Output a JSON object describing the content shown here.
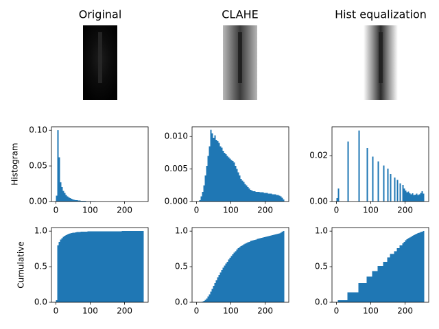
{
  "chart_data": [
    {
      "type": "image",
      "title": "Original"
    },
    {
      "type": "image",
      "title": "CLAHE"
    },
    {
      "type": "image",
      "title": "Hist equalization"
    },
    {
      "type": "histogram",
      "ylabel": "Histogram",
      "color": "#1f77b4",
      "bins": [
        0,
        4,
        8,
        12,
        16,
        20,
        24,
        28,
        32,
        36,
        40,
        44,
        48,
        52,
        56,
        60,
        64,
        68,
        72,
        76,
        80,
        84,
        88,
        92,
        96,
        100,
        104,
        108,
        112,
        116,
        120,
        124,
        128,
        132,
        136,
        140,
        144,
        148,
        152,
        156,
        160,
        164,
        168,
        172,
        176,
        180,
        184,
        188,
        192,
        196,
        200,
        204,
        208,
        212,
        216,
        220,
        224,
        228,
        232,
        236,
        240,
        244,
        248,
        252,
        256
      ],
      "values": [
        0.008,
        0.1,
        0.062,
        0.027,
        0.02,
        0.015,
        0.012,
        0.009,
        0.007,
        0.006,
        0.005,
        0.004,
        0.003,
        0.0025,
        0.002,
        0.0018,
        0.0015,
        0.0013,
        0.0012,
        0.001,
        0.0009,
        0.0008,
        0.0007,
        0.0006,
        0.0005,
        0.0004,
        0.0004,
        0.0003,
        0.0003,
        0.0002,
        0.0002,
        0.0002,
        0.0001,
        0.0001,
        0.0001,
        0.0001,
        0.0001,
        0.0001,
        0.0001,
        0.0001,
        0.0001,
        0.0001,
        0,
        0,
        0,
        0,
        0,
        0,
        0,
        0,
        0,
        0,
        0,
        0,
        0,
        0,
        0,
        0,
        0,
        0,
        0,
        0,
        0,
        0
      ],
      "xlim": [
        -12.8,
        268.8
      ],
      "xticks": [
        0,
        100,
        200
      ],
      "ylim": [
        0,
        0.105
      ],
      "yticks": [
        {
          "value": 0,
          "label": "0.00"
        },
        {
          "value": 0.05,
          "label": "0.05"
        },
        {
          "value": 0.1,
          "label": "0.10"
        }
      ]
    },
    {
      "type": "histogram",
      "color": "#1f77b4",
      "bins": [
        0,
        4,
        8,
        12,
        16,
        20,
        24,
        28,
        32,
        36,
        40,
        44,
        48,
        52,
        56,
        60,
        64,
        68,
        72,
        76,
        80,
        84,
        88,
        92,
        96,
        100,
        104,
        108,
        112,
        116,
        120,
        124,
        128,
        132,
        136,
        140,
        144,
        148,
        152,
        156,
        160,
        164,
        168,
        172,
        176,
        180,
        184,
        188,
        192,
        196,
        200,
        204,
        208,
        212,
        216,
        220,
        224,
        228,
        232,
        236,
        240,
        244,
        248,
        252,
        256
      ],
      "values": [
        0,
        0,
        0.0002,
        0.0008,
        0.0015,
        0.0025,
        0.004,
        0.0055,
        0.007,
        0.0085,
        0.011,
        0.0105,
        0.0098,
        0.0102,
        0.0095,
        0.0093,
        0.009,
        0.0085,
        0.0083,
        0.0078,
        0.0075,
        0.0073,
        0.007,
        0.0068,
        0.0066,
        0.0064,
        0.0062,
        0.006,
        0.0055,
        0.005,
        0.0045,
        0.004,
        0.0035,
        0.0032,
        0.003,
        0.0027,
        0.0025,
        0.0022,
        0.002,
        0.0018,
        0.0017,
        0.0016,
        0.0016,
        0.0015,
        0.0015,
        0.0015,
        0.0014,
        0.0014,
        0.0014,
        0.0013,
        0.0013,
        0.0013,
        0.0012,
        0.0012,
        0.0012,
        0.0011,
        0.0011,
        0.0011,
        0.001,
        0.001,
        0.0009,
        0.0008,
        0.0006,
        0.0003
      ],
      "xlim": [
        -12.8,
        268.8
      ],
      "xticks": [
        0,
        100,
        200
      ],
      "ylim": [
        0,
        0.0115
      ],
      "yticks": [
        {
          "value": 0,
          "label": "0.000"
        },
        {
          "value": 0.005,
          "label": "0.005"
        },
        {
          "value": 0.01,
          "label": "0.010"
        }
      ]
    },
    {
      "type": "histogram",
      "color": "#1f77b4",
      "bins": [
        0,
        4,
        8,
        12,
        16,
        20,
        24,
        28,
        32,
        36,
        40,
        44,
        48,
        52,
        56,
        60,
        64,
        68,
        72,
        76,
        80,
        84,
        88,
        92,
        96,
        100,
        104,
        108,
        112,
        116,
        120,
        124,
        128,
        132,
        136,
        140,
        144,
        148,
        152,
        156,
        160,
        164,
        168,
        172,
        176,
        180,
        184,
        188,
        192,
        196,
        200,
        204,
        208,
        212,
        216,
        220,
        224,
        228,
        232,
        236,
        240,
        244,
        248,
        252,
        256
      ],
      "values": [
        0.0015,
        0.0057,
        0,
        0,
        0,
        0,
        0,
        0,
        0.0262,
        0,
        0,
        0,
        0,
        0,
        0,
        0,
        0.031,
        0,
        0,
        0,
        0,
        0,
        0.0233,
        0,
        0,
        0,
        0.0196,
        0,
        0,
        0,
        0.0175,
        0,
        0,
        0,
        0.0157,
        0,
        0,
        0.0143,
        0,
        0.012,
        0,
        0,
        0.0105,
        0,
        0.0094,
        0,
        0.008,
        0,
        0.0072,
        0.0057,
        0.0048,
        0.004,
        0.0043,
        0.0036,
        0.0032,
        0.0036,
        0.0028,
        0.003,
        0.0034,
        0.0028,
        0.0032,
        0.0038,
        0.0045,
        0.0035
      ],
      "xlim": [
        -12.8,
        268.8
      ],
      "xticks": [
        0,
        100,
        200
      ],
      "ylim": [
        0,
        0.0326
      ],
      "yticks": [
        {
          "value": 0,
          "label": "0.00"
        },
        {
          "value": 0.02,
          "label": "0.02"
        }
      ]
    },
    {
      "type": "histogram",
      "ylabel": "Cumulative",
      "color": "#1f77b4",
      "bins": [
        0,
        4,
        8,
        12,
        16,
        20,
        24,
        28,
        32,
        36,
        40,
        44,
        48,
        52,
        56,
        60,
        64,
        68,
        72,
        76,
        80,
        84,
        88,
        92,
        96,
        100,
        104,
        108,
        112,
        116,
        120,
        124,
        128,
        132,
        136,
        140,
        144,
        148,
        152,
        156,
        160,
        164,
        168,
        172,
        176,
        180,
        184,
        188,
        192,
        196,
        200,
        204,
        208,
        212,
        216,
        220,
        224,
        228,
        232,
        236,
        240,
        244,
        248,
        252,
        256
      ],
      "values": [
        0.03,
        0.8,
        0.85,
        0.88,
        0.9,
        0.92,
        0.935,
        0.945,
        0.955,
        0.962,
        0.968,
        0.973,
        0.977,
        0.98,
        0.983,
        0.985,
        0.987,
        0.989,
        0.99,
        0.991,
        0.992,
        0.993,
        0.994,
        0.995,
        0.996,
        0.996,
        0.997,
        0.997,
        0.998,
        0.998,
        0.998,
        0.999,
        0.999,
        0.999,
        0.999,
        0.999,
        0.999,
        0.999,
        0.999,
        0.999,
        0.999,
        0.999,
        0.999,
        0.999,
        0.999,
        0.999,
        0.999,
        0.999,
        1,
        1,
        1,
        1,
        1,
        1,
        1,
        1,
        1,
        1,
        1,
        1,
        1,
        1,
        1,
        1
      ],
      "xlim": [
        -12.8,
        268.8
      ],
      "xticks": [
        0,
        100,
        200
      ],
      "ylim": [
        0,
        1.05
      ],
      "yticks": [
        {
          "value": 0,
          "label": "0.0"
        },
        {
          "value": 0.5,
          "label": "0.5"
        },
        {
          "value": 1,
          "label": "1.0"
        }
      ]
    },
    {
      "type": "histogram",
      "color": "#1f77b4",
      "bins": [
        0,
        4,
        8,
        12,
        16,
        20,
        24,
        28,
        32,
        36,
        40,
        44,
        48,
        52,
        56,
        60,
        64,
        68,
        72,
        76,
        80,
        84,
        88,
        92,
        96,
        100,
        104,
        108,
        112,
        116,
        120,
        124,
        128,
        132,
        136,
        140,
        144,
        148,
        152,
        156,
        160,
        164,
        168,
        172,
        176,
        180,
        184,
        188,
        192,
        196,
        200,
        204,
        208,
        212,
        216,
        220,
        224,
        228,
        232,
        236,
        240,
        244,
        248,
        252,
        256
      ],
      "values": [
        0,
        0,
        0.001,
        0.004,
        0.01,
        0.02,
        0.035,
        0.055,
        0.08,
        0.11,
        0.15,
        0.19,
        0.23,
        0.27,
        0.31,
        0.35,
        0.385,
        0.42,
        0.455,
        0.485,
        0.515,
        0.545,
        0.57,
        0.6,
        0.625,
        0.65,
        0.675,
        0.7,
        0.72,
        0.74,
        0.76,
        0.775,
        0.79,
        0.8,
        0.815,
        0.825,
        0.835,
        0.845,
        0.85,
        0.86,
        0.865,
        0.87,
        0.875,
        0.88,
        0.89,
        0.895,
        0.9,
        0.905,
        0.91,
        0.915,
        0.92,
        0.925,
        0.93,
        0.935,
        0.94,
        0.945,
        0.95,
        0.955,
        0.96,
        0.965,
        0.97,
        0.98,
        0.99,
        1
      ],
      "xlim": [
        -12.8,
        268.8
      ],
      "xticks": [
        0,
        100,
        200
      ],
      "ylim": [
        0,
        1.05
      ],
      "yticks": [
        {
          "value": 0,
          "label": "0.0"
        },
        {
          "value": 0.5,
          "label": "0.5"
        },
        {
          "value": 1,
          "label": "1.0"
        }
      ]
    },
    {
      "type": "histogram",
      "color": "#1f77b4",
      "bins": [
        0,
        4,
        8,
        12,
        16,
        20,
        24,
        28,
        32,
        36,
        40,
        44,
        48,
        52,
        56,
        60,
        64,
        68,
        72,
        76,
        80,
        84,
        88,
        92,
        96,
        100,
        104,
        108,
        112,
        116,
        120,
        124,
        128,
        132,
        136,
        140,
        144,
        148,
        152,
        156,
        160,
        164,
        168,
        172,
        176,
        180,
        184,
        188,
        192,
        196,
        200,
        204,
        208,
        212,
        216,
        220,
        224,
        228,
        232,
        236,
        240,
        244,
        248,
        252,
        256
      ],
      "values": [
        0.006,
        0.03,
        0.03,
        0.03,
        0.03,
        0.03,
        0.03,
        0.03,
        0.14,
        0.14,
        0.14,
        0.14,
        0.14,
        0.14,
        0.14,
        0.14,
        0.27,
        0.27,
        0.27,
        0.27,
        0.27,
        0.27,
        0.36,
        0.36,
        0.36,
        0.36,
        0.44,
        0.44,
        0.44,
        0.44,
        0.51,
        0.51,
        0.51,
        0.51,
        0.57,
        0.57,
        0.57,
        0.63,
        0.63,
        0.68,
        0.68,
        0.68,
        0.72,
        0.72,
        0.76,
        0.76,
        0.8,
        0.8,
        0.83,
        0.85,
        0.87,
        0.885,
        0.9,
        0.91,
        0.92,
        0.935,
        0.945,
        0.955,
        0.965,
        0.975,
        0.98,
        0.985,
        0.99,
        1
      ],
      "xlim": [
        -12.8,
        268.8
      ],
      "xticks": [
        0,
        100,
        200
      ],
      "ylim": [
        0,
        1.05
      ],
      "yticks": [
        {
          "value": 0,
          "label": "0.0"
        },
        {
          "value": 0.5,
          "label": "0.5"
        },
        {
          "value": 1,
          "label": "1.0"
        }
      ]
    }
  ]
}
